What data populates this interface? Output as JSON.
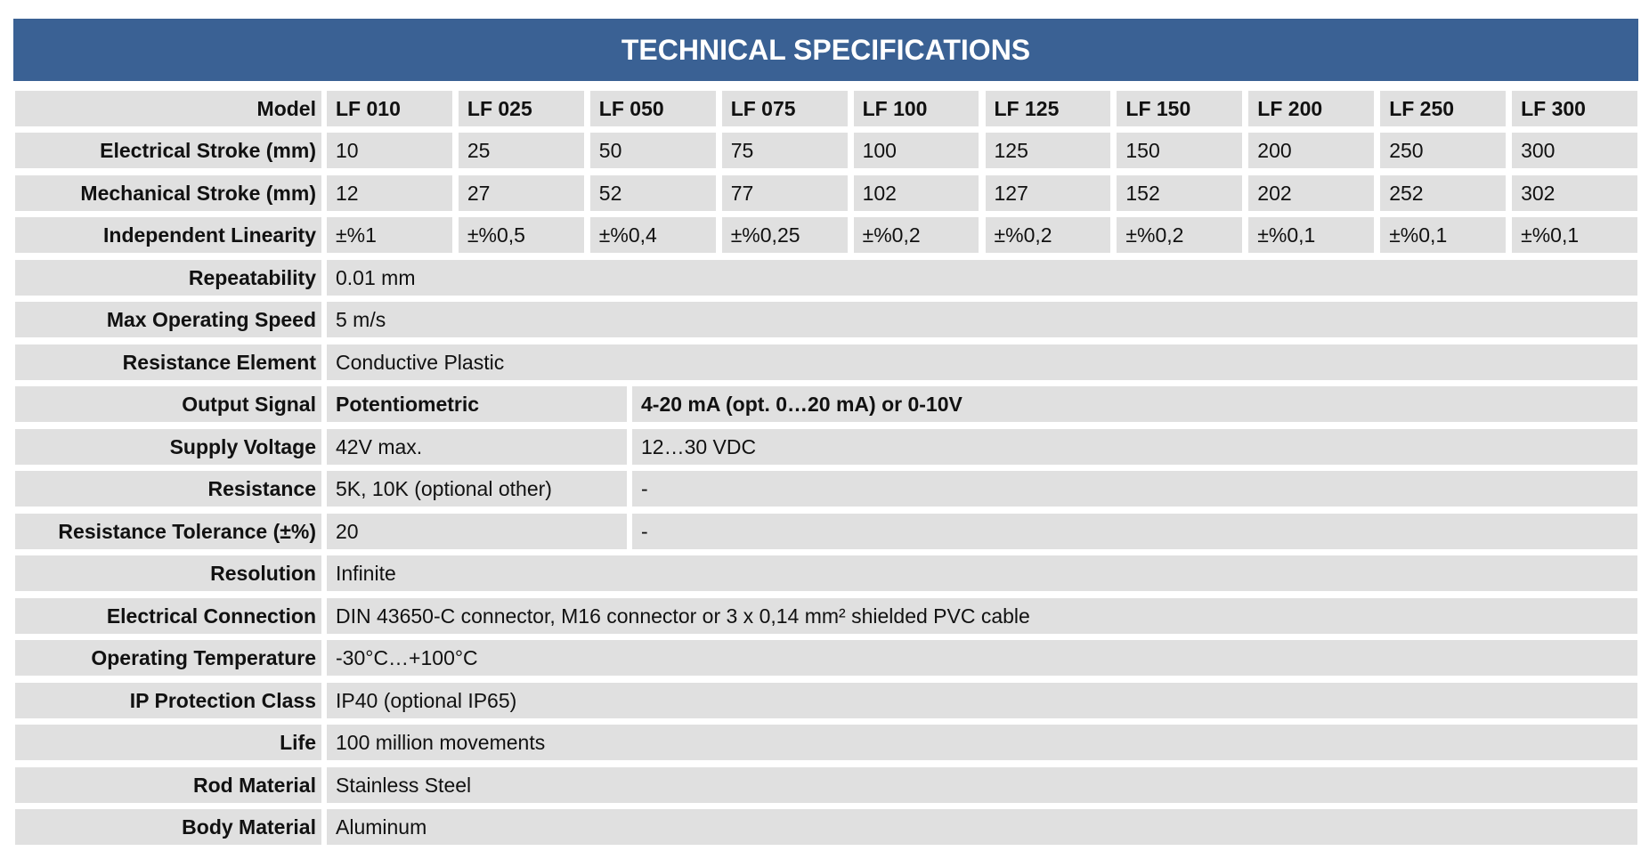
{
  "header": {
    "title": "TECHNICAL SPECIFICATIONS"
  },
  "table": {
    "rows": [
      {
        "label": "Model",
        "cells": [
          "LF 010",
          "LF 025",
          "LF 050",
          "LF 075",
          "LF 100",
          "LF 125",
          "LF 150",
          "LF 200",
          "LF 250",
          "LF 300"
        ]
      },
      {
        "label": "Electrical Stroke (mm)",
        "cells": [
          "10",
          "25",
          "50",
          "75",
          "100",
          "125",
          "150",
          "200",
          "250",
          "300"
        ]
      },
      {
        "label": "Mechanical Stroke (mm)",
        "cells": [
          "12",
          "27",
          "52",
          "77",
          "102",
          "127",
          "152",
          "202",
          "252",
          "302"
        ]
      },
      {
        "label": "Independent Linearity",
        "cells": [
          "±%1",
          "±%0,5",
          "±%0,4",
          "±%0,25",
          "±%0,2",
          "±%0,2",
          "±%0,2",
          "±%0,1",
          "±%0,1",
          "±%0,1"
        ]
      },
      {
        "label": "Repeatability",
        "cells": [
          "0.01 mm"
        ]
      },
      {
        "label": "Max Operating Speed",
        "cells": [
          "5 m/s"
        ]
      },
      {
        "label": "Resistance Element",
        "cells": [
          "Conductive Plastic"
        ]
      },
      {
        "label": "Output Signal",
        "cells": [
          "Potentiometric",
          "4-20 mA (opt. 0…20 mA) or 0-10V"
        ]
      },
      {
        "label": "Supply Voltage",
        "cells": [
          "42V max.",
          "12…30 VDC"
        ]
      },
      {
        "label": "Resistance",
        "cells": [
          "5K, 10K (optional other)",
          "-"
        ]
      },
      {
        "label": "Resistance Tolerance (±%)",
        "cells": [
          "20",
          "-"
        ]
      },
      {
        "label": "Resolution",
        "cells": [
          "Infinite"
        ]
      },
      {
        "label": "Electrical Connection",
        "cells": [
          "DIN 43650-C connector, M16 connector or 3 x 0,14 mm² shielded PVC cable"
        ]
      },
      {
        "label": "Operating Temperature",
        "cells": [
          "-30°C…+100°C"
        ]
      },
      {
        "label": "IP Protection Class",
        "cells": [
          "IP40 (optional IP65)"
        ]
      },
      {
        "label": "Life",
        "cells": [
          "100 million movements"
        ]
      },
      {
        "label": "Rod Material",
        "cells": [
          "Stainless Steel"
        ]
      },
      {
        "label": "Body Material",
        "cells": [
          "Aluminum"
        ]
      }
    ]
  }
}
